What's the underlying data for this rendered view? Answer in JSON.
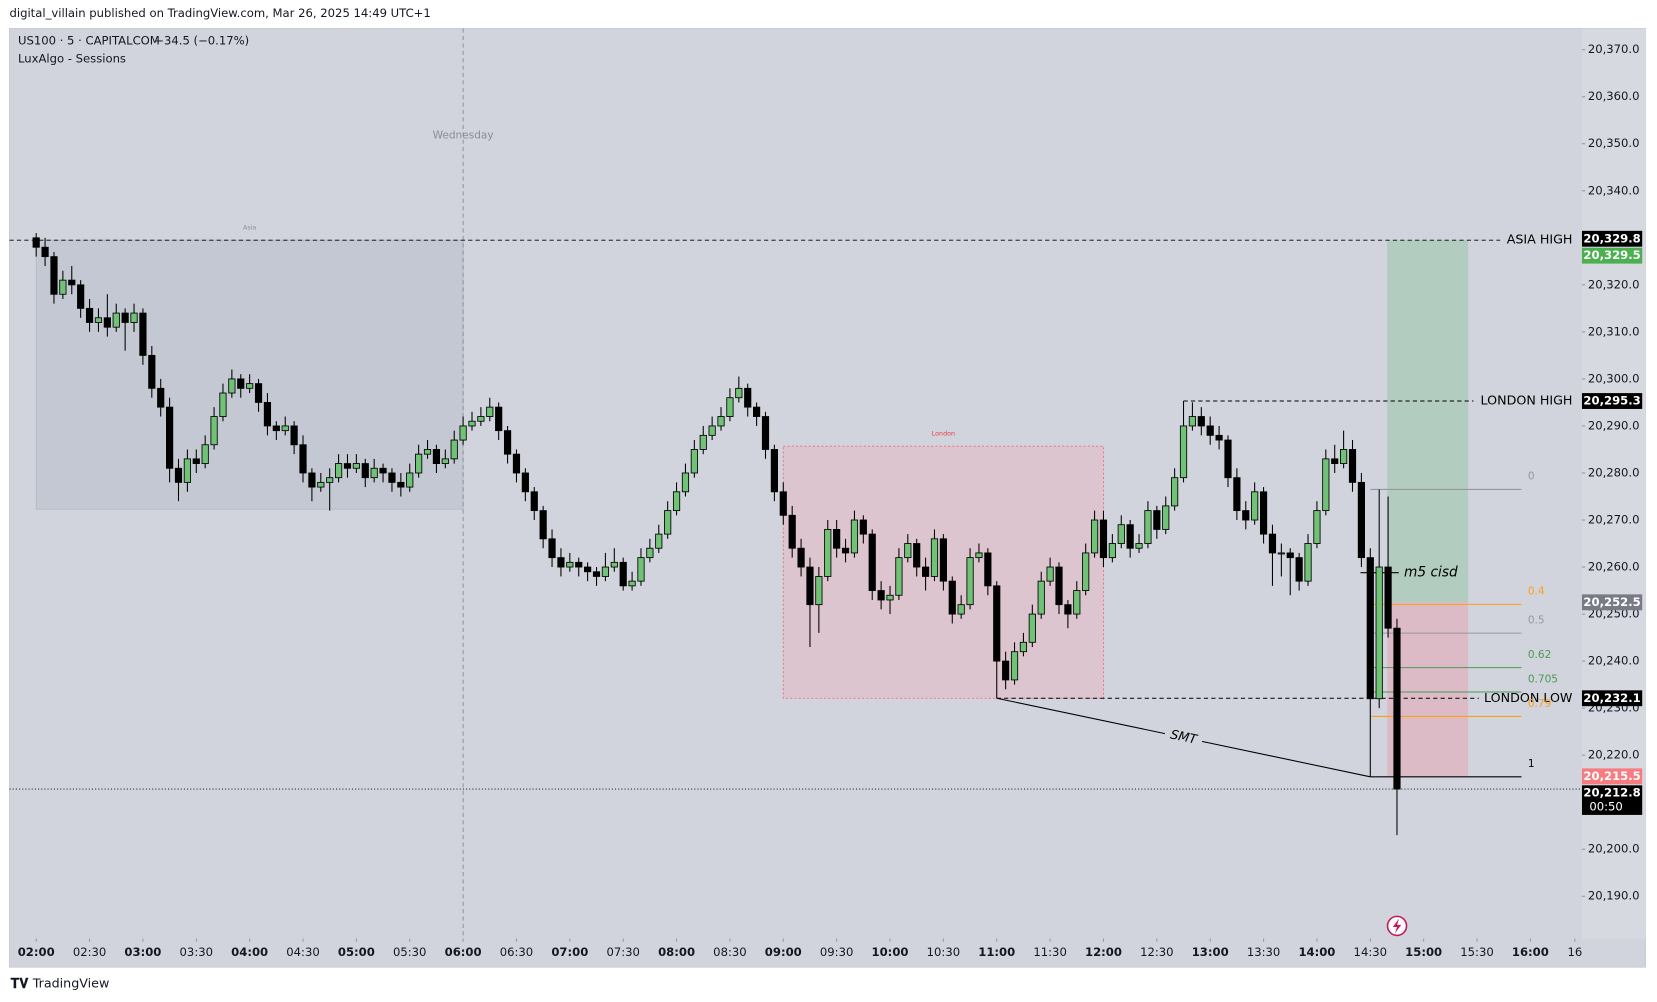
{
  "header": "digital_villain published on TradingView.com, Mar 26, 2025 14:49 UTC+1",
  "footer": "TradingView",
  "chart_data": {
    "type": "candlestick",
    "symbol": "US100 · 5 · CAPITALCOM",
    "change": "−34.5 (−0.17%)",
    "indicator": "LuxAlgo - Sessions",
    "day_label": "Wednesday",
    "day_index": 48,
    "up_color": "#6fc276",
    "down_color": "#000000",
    "xlim": [
      -3,
      173.8
    ],
    "ylim": [
      20181,
      20374.5
    ],
    "xticks": [
      {
        "value": 0,
        "label": "02:00"
      },
      {
        "value": 6,
        "label": "02:30"
      },
      {
        "value": 12,
        "label": "03:00"
      },
      {
        "value": 18,
        "label": "03:30"
      },
      {
        "value": 24,
        "label": "04:00"
      },
      {
        "value": 30,
        "label": "04:30"
      },
      {
        "value": 36,
        "label": "05:00"
      },
      {
        "value": 42,
        "label": "05:30"
      },
      {
        "value": 48,
        "label": "06:00"
      },
      {
        "value": 54,
        "label": "06:30"
      },
      {
        "value": 60,
        "label": "07:00"
      },
      {
        "value": 66,
        "label": "07:30"
      },
      {
        "value": 72,
        "label": "08:00"
      },
      {
        "value": 78,
        "label": "08:30"
      },
      {
        "value": 84,
        "label": "09:00"
      },
      {
        "value": 90,
        "label": "09:30"
      },
      {
        "value": 96,
        "label": "10:00"
      },
      {
        "value": 102,
        "label": "10:30"
      },
      {
        "value": 108,
        "label": "11:00"
      },
      {
        "value": 114,
        "label": "11:30"
      },
      {
        "value": 120,
        "label": "12:00"
      },
      {
        "value": 126,
        "label": "12:30"
      },
      {
        "value": 132,
        "label": "13:00"
      },
      {
        "value": 138,
        "label": "13:30"
      },
      {
        "value": 144,
        "label": "14:00"
      },
      {
        "value": 150,
        "label": "14:30"
      },
      {
        "value": 156,
        "label": "15:00"
      },
      {
        "value": 162,
        "label": "15:30"
      },
      {
        "value": 168,
        "label": "16:00"
      },
      {
        "value": 173,
        "label": "16"
      }
    ],
    "yticks": [
      {
        "value": 20190,
        "label": "20,190.0"
      },
      {
        "value": 20200,
        "label": "20,200.0"
      },
      {
        "value": 20210,
        "label": "20,210.0"
      },
      {
        "value": 20220,
        "label": "20,220.0"
      },
      {
        "value": 20230,
        "label": "20,230.0"
      },
      {
        "value": 20240,
        "label": "20,240.0"
      },
      {
        "value": 20250,
        "label": "20,250.0"
      },
      {
        "value": 20260,
        "label": "20,260.0"
      },
      {
        "value": 20270,
        "label": "20,270.0"
      },
      {
        "value": 20280,
        "label": "20,280.0"
      },
      {
        "value": 20290,
        "label": "20,290.0"
      },
      {
        "value": 20300,
        "label": "20,300.0"
      },
      {
        "value": 20310,
        "label": "20,310.0"
      },
      {
        "value": 20320,
        "label": "20,320.0"
      },
      {
        "value": 20330,
        "label": "20,330.0"
      },
      {
        "value": 20340,
        "label": "20,340.0"
      },
      {
        "value": 20350,
        "label": "20,350.0"
      },
      {
        "value": 20360,
        "label": "20,360.0"
      },
      {
        "value": 20370,
        "label": "20,370.0"
      }
    ],
    "ohlc": [
      [
        20330,
        20331,
        20326,
        20328
      ],
      [
        20328,
        20330,
        20324,
        20326
      ],
      [
        20326,
        20327,
        20316,
        20318
      ],
      [
        20318,
        20323,
        20317,
        20321
      ],
      [
        20321,
        20324,
        20318,
        20320
      ],
      [
        20320,
        20321,
        20313,
        20315
      ],
      [
        20315,
        20317,
        20310,
        20312
      ],
      [
        20312,
        20315,
        20310,
        20313
      ],
      [
        20313,
        20318,
        20309,
        20311
      ],
      [
        20311,
        20316,
        20310,
        20314
      ],
      [
        20314,
        20315,
        20306,
        20312
      ],
      [
        20312,
        20316,
        20310,
        20314
      ],
      [
        20314,
        20315,
        20303,
        20305
      ],
      [
        20305,
        20307,
        20296,
        20298
      ],
      [
        20298,
        20300,
        20292,
        20294
      ],
      [
        20294,
        20296,
        20278,
        20281
      ],
      [
        20281,
        20283,
        20274,
        20278
      ],
      [
        20278,
        20285,
        20276,
        20283
      ],
      [
        20283,
        20285,
        20280,
        20282
      ],
      [
        20282,
        20288,
        20281,
        20286
      ],
      [
        20286,
        20294,
        20285,
        20292
      ],
      [
        20292,
        20299,
        20291,
        20297
      ],
      [
        20297,
        20302,
        20296,
        20300
      ],
      [
        20300,
        20301,
        20296,
        20298
      ],
      [
        20298,
        20301,
        20297,
        20299
      ],
      [
        20299,
        20300,
        20293,
        20295
      ],
      [
        20295,
        20297,
        20288,
        20290
      ],
      [
        20290,
        20291,
        20287,
        20289
      ],
      [
        20289,
        20292,
        20288,
        20290
      ],
      [
        20290,
        20291,
        20284,
        20286
      ],
      [
        20286,
        20288,
        20278,
        20280
      ],
      [
        20280,
        20281,
        20274,
        20277
      ],
      [
        20277,
        20280,
        20276,
        20278
      ],
      [
        20278,
        20281,
        20272,
        20279
      ],
      [
        20279,
        20284,
        20278,
        20282
      ],
      [
        20282,
        20284,
        20279,
        20281
      ],
      [
        20281,
        20284,
        20280,
        20282
      ],
      [
        20282,
        20283,
        20277,
        20279
      ],
      [
        20279,
        20283,
        20278,
        20281
      ],
      [
        20281,
        20282,
        20278,
        20280
      ],
      [
        20280,
        20281,
        20276,
        20278
      ],
      [
        20278,
        20280,
        20275,
        20277
      ],
      [
        20277,
        20282,
        20276,
        20280
      ],
      [
        20280,
        20286,
        20279,
        20284
      ],
      [
        20284,
        20287,
        20283,
        20285
      ],
      [
        20285,
        20286,
        20280,
        20282
      ],
      [
        20282,
        20285,
        20281,
        20283
      ],
      [
        20283,
        20289,
        20282,
        20287
      ],
      [
        20287,
        20292,
        20286,
        20290
      ],
      [
        20290,
        20293,
        20289,
        20291
      ],
      [
        20291,
        20294,
        20290,
        20292
      ],
      [
        20292,
        20296,
        20291,
        20294
      ],
      [
        20294,
        20295,
        20287,
        20289
      ],
      [
        20289,
        20290,
        20282,
        20284
      ],
      [
        20284,
        20285,
        20278,
        20280
      ],
      [
        20280,
        20281,
        20274,
        20276
      ],
      [
        20276,
        20277,
        20270,
        20272
      ],
      [
        20272,
        20273,
        20264,
        20266
      ],
      [
        20266,
        20268,
        20260,
        20262
      ],
      [
        20262,
        20264,
        20258,
        20260
      ],
      [
        20260,
        20263,
        20259,
        20261
      ],
      [
        20261,
        20262,
        20258,
        20260
      ],
      [
        20260,
        20261,
        20257,
        20259
      ],
      [
        20259,
        20260,
        20256,
        20258
      ],
      [
        20258,
        20263,
        20257,
        20260
      ],
      [
        20260,
        20264,
        20259,
        20261
      ],
      [
        20261,
        20262,
        20255,
        20256
      ],
      [
        20256,
        20259,
        20255,
        20257
      ],
      [
        20257,
        20264,
        20256,
        20262
      ],
      [
        20262,
        20266,
        20261,
        20264
      ],
      [
        20264,
        20269,
        20263,
        20267
      ],
      [
        20267,
        20274,
        20266,
        20272
      ],
      [
        20272,
        20278,
        20271,
        20276
      ],
      [
        20276,
        20282,
        20275,
        20280
      ],
      [
        20280,
        20287,
        20279,
        20285
      ],
      [
        20285,
        20290,
        20284,
        20288
      ],
      [
        20288,
        20292,
        20287,
        20290
      ],
      [
        20290,
        20294,
        20289,
        20292
      ],
      [
        20292,
        20298,
        20291,
        20296
      ],
      [
        20296,
        20300.5,
        20295,
        20298
      ],
      [
        20298,
        20299,
        20292,
        20294
      ],
      [
        20294,
        20295,
        20290,
        20292
      ],
      [
        20292,
        20293,
        20283,
        20285
      ],
      [
        20285,
        20286,
        20274,
        20276
      ],
      [
        20276,
        20278,
        20269,
        20271
      ],
      [
        20271,
        20273,
        20262,
        20264
      ],
      [
        20264,
        20266,
        20258,
        20260
      ],
      [
        20260,
        20262,
        20243,
        20252
      ],
      [
        20252,
        20260,
        20246,
        20258
      ],
      [
        20258,
        20270,
        20257,
        20268
      ],
      [
        20268,
        20270,
        20262,
        20264
      ],
      [
        20264,
        20266,
        20261,
        20263
      ],
      [
        20263,
        20272,
        20262,
        20270
      ],
      [
        20270,
        20271,
        20265,
        20267
      ],
      [
        20267,
        20268,
        20253,
        20255
      ],
      [
        20255,
        20257,
        20251,
        20253
      ],
      [
        20253,
        20256,
        20250,
        20254
      ],
      [
        20254,
        20264,
        20253,
        20262
      ],
      [
        20262,
        20267,
        20261,
        20265
      ],
      [
        20265,
        20266,
        20258,
        20260
      ],
      [
        20260,
        20262,
        20255,
        20258
      ],
      [
        20258,
        20268,
        20257,
        20266
      ],
      [
        20266,
        20267,
        20255,
        20257
      ],
      [
        20257,
        20258,
        20248,
        20250
      ],
      [
        20250,
        20254,
        20249,
        20252
      ],
      [
        20252,
        20264,
        20251,
        20262
      ],
      [
        20262,
        20265,
        20261,
        20263
      ],
      [
        20263,
        20264,
        20254,
        20256
      ],
      [
        20256,
        20257,
        20232.1,
        20240
      ],
      [
        20240,
        20242,
        20234,
        20236
      ],
      [
        20236,
        20244,
        20235,
        20242
      ],
      [
        20242,
        20246,
        20241,
        20244
      ],
      [
        20244,
        20252,
        20243,
        20250
      ],
      [
        20250,
        20259,
        20249,
        20257
      ],
      [
        20257,
        20262,
        20256,
        20260
      ],
      [
        20260,
        20261,
        20250,
        20252
      ],
      [
        20252,
        20253,
        20247,
        20250
      ],
      [
        20250,
        20257,
        20249,
        20255
      ],
      [
        20255,
        20265,
        20254,
        20263
      ],
      [
        20263,
        20272,
        20262,
        20270
      ],
      [
        20270,
        20272,
        20260,
        20262
      ],
      [
        20262,
        20267,
        20261,
        20265
      ],
      [
        20265,
        20271,
        20264,
        20269
      ],
      [
        20269,
        20270,
        20262,
        20264
      ],
      [
        20264,
        20267,
        20263,
        20265
      ],
      [
        20265,
        20274,
        20264,
        20272
      ],
      [
        20272,
        20273,
        20266,
        20268
      ],
      [
        20268,
        20275,
        20267,
        20273
      ],
      [
        20273,
        20281,
        20272,
        20279
      ],
      [
        20279,
        20295.3,
        20278,
        20290
      ],
      [
        20290,
        20295,
        20289,
        20292
      ],
      [
        20292,
        20294,
        20288,
        20290
      ],
      [
        20290,
        20292,
        20286,
        20288
      ],
      [
        20288,
        20290,
        20285,
        20287
      ],
      [
        20287,
        20288,
        20277,
        20279
      ],
      [
        20279,
        20281,
        20270,
        20272
      ],
      [
        20272,
        20274,
        20268,
        20270
      ],
      [
        20270,
        20278,
        20269,
        20276
      ],
      [
        20276,
        20277,
        20265,
        20267
      ],
      [
        20267,
        20269,
        20256,
        20263
      ],
      [
        20263,
        20265,
        20258,
        20263
      ],
      [
        20263,
        20264,
        20254,
        20262
      ],
      [
        20262,
        20263,
        20255,
        20257
      ],
      [
        20257,
        20267,
        20256,
        20265
      ],
      [
        20265,
        20274,
        20264,
        20272
      ],
      [
        20272,
        20285,
        20271,
        20283
      ],
      [
        20283,
        20286,
        20280,
        20282
      ],
      [
        20282,
        20289,
        20281,
        20285
      ],
      [
        20285,
        20287,
        20276,
        20278
      ],
      [
        20278,
        20280,
        20260,
        20262
      ],
      [
        20262,
        20264,
        20215.4,
        20232
      ],
      [
        20232,
        20276.5,
        20230,
        20260
      ],
      [
        20260,
        20275,
        20245,
        20247
      ],
      [
        20247,
        20249,
        20203,
        20212.8
      ]
    ],
    "sessions": [
      {
        "name": "Asia",
        "start": 0,
        "end": 48,
        "high": 20329.5,
        "low": 20272.3,
        "fill": "rgba(160,164,180,0.25)",
        "stroke": "#9598a1",
        "label_color": "#8a8d96"
      },
      {
        "name": "London",
        "start": 84,
        "end": 120,
        "high": 20285.7,
        "low": 20232.1,
        "fill": "rgba(242,170,180,0.35)",
        "stroke": "#f06a7a",
        "label_color": "#f23645"
      }
    ],
    "levels": [
      {
        "name": "ASIA HIGH",
        "value": 20329.5,
        "start": -3,
        "end": 164.6
      },
      {
        "name": "LONDON HIGH",
        "value": 20295.3,
        "start": 129,
        "end": 161.6
      },
      {
        "name": "LONDON LOW",
        "value": 20232.1,
        "start": 108,
        "end": 162.2
      }
    ],
    "smt": {
      "label": "SMT",
      "x": [
        108,
        150
      ],
      "y": [
        20232.1,
        20215.4
      ]
    },
    "cisd": {
      "label": "m5 cisd",
      "value": 20258.8,
      "start": 148.9,
      "end": 153.2
    },
    "fib": {
      "start": 150,
      "end": 167,
      "price_0": 20276.5,
      "price_1": 20215.4,
      "levels": [
        {
          "value": 0,
          "color": "#9598a1"
        },
        {
          "value": 0.4,
          "color": "#f7a21b"
        },
        {
          "value": 0.5,
          "color": "#9598a1"
        },
        {
          "value": 0.62,
          "color": "#4c9a52"
        },
        {
          "value": 0.705,
          "color": "#4c9a52"
        },
        {
          "value": 0.79,
          "color": "#f7a21b"
        },
        {
          "value": 1,
          "color": "#000000"
        }
      ]
    },
    "position": {
      "start": 151.9,
      "end": 161,
      "entry": 20252.5,
      "target": 20329.5,
      "stop": 20215.5
    },
    "price_labels": [
      {
        "value": 20329.8,
        "label": "20,329.8",
        "color": "#000000"
      },
      {
        "value": 20329.5,
        "label": "20,329.5",
        "color": "#4caf50"
      },
      {
        "value": 20295.3,
        "label": "20,295.3",
        "color": "#000000"
      },
      {
        "value": 20252.5,
        "label": "20,252.5",
        "color": "#787b86"
      },
      {
        "value": 20232.1,
        "label": "20,232.1",
        "color": "#000000"
      },
      {
        "value": 20215.5,
        "label": "20,215.5",
        "color": "#f77c80"
      },
      {
        "value": 20212.8,
        "label": "20,212.8",
        "color": "#000000",
        "sub": "00:50"
      }
    ]
  }
}
